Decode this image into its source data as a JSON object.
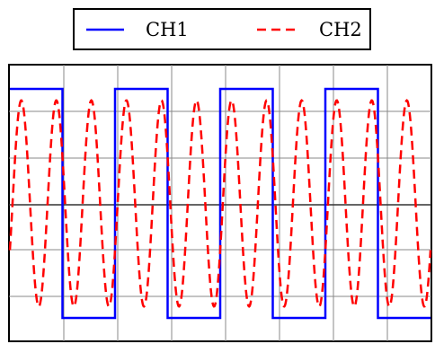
{
  "chart_data": {
    "type": "line",
    "title": "",
    "xlabel": "",
    "ylabel": "",
    "xlim": [
      0,
      8
    ],
    "ylim": [
      -5,
      5
    ],
    "grid": true,
    "legend": {
      "placement": "top-center",
      "entries": [
        "CH1",
        "CH2"
      ]
    },
    "series": [
      {
        "name": "CH1",
        "style": "solid",
        "color": "#0000ff",
        "x": [
          0,
          1,
          1,
          2,
          2,
          3,
          3,
          4,
          4,
          5,
          5,
          6,
          6,
          7,
          7,
          8
        ],
        "y": [
          5,
          5,
          -5,
          -5,
          5,
          5,
          -5,
          -5,
          5,
          5,
          -5,
          -5,
          5,
          5,
          -5,
          -5
        ]
      },
      {
        "name": "CH2",
        "style": "dashed",
        "color": "#ff0000",
        "amplitude": 4.5,
        "frequency_per_division": 1.5,
        "x": [
          0,
          0.333,
          0.667,
          1,
          1.333,
          1.667,
          2,
          2.333,
          2.667,
          3,
          3.333,
          3.667,
          4,
          4.333,
          4.667,
          5,
          5.333,
          5.667,
          6,
          6.333,
          6.667,
          7,
          7.333,
          7.667,
          8
        ],
        "y": [
          0,
          4.5,
          -4.5,
          4.5,
          -4.5,
          4.5,
          -4.5,
          4.5,
          -4.5,
          4.5,
          -4.5,
          4.5,
          -4.5,
          4.5,
          -4.5,
          4.5,
          -4.5,
          4.5,
          -4.5,
          4.5,
          -4.5,
          4.5,
          -4.5,
          4.5,
          -4.5
        ]
      }
    ]
  }
}
